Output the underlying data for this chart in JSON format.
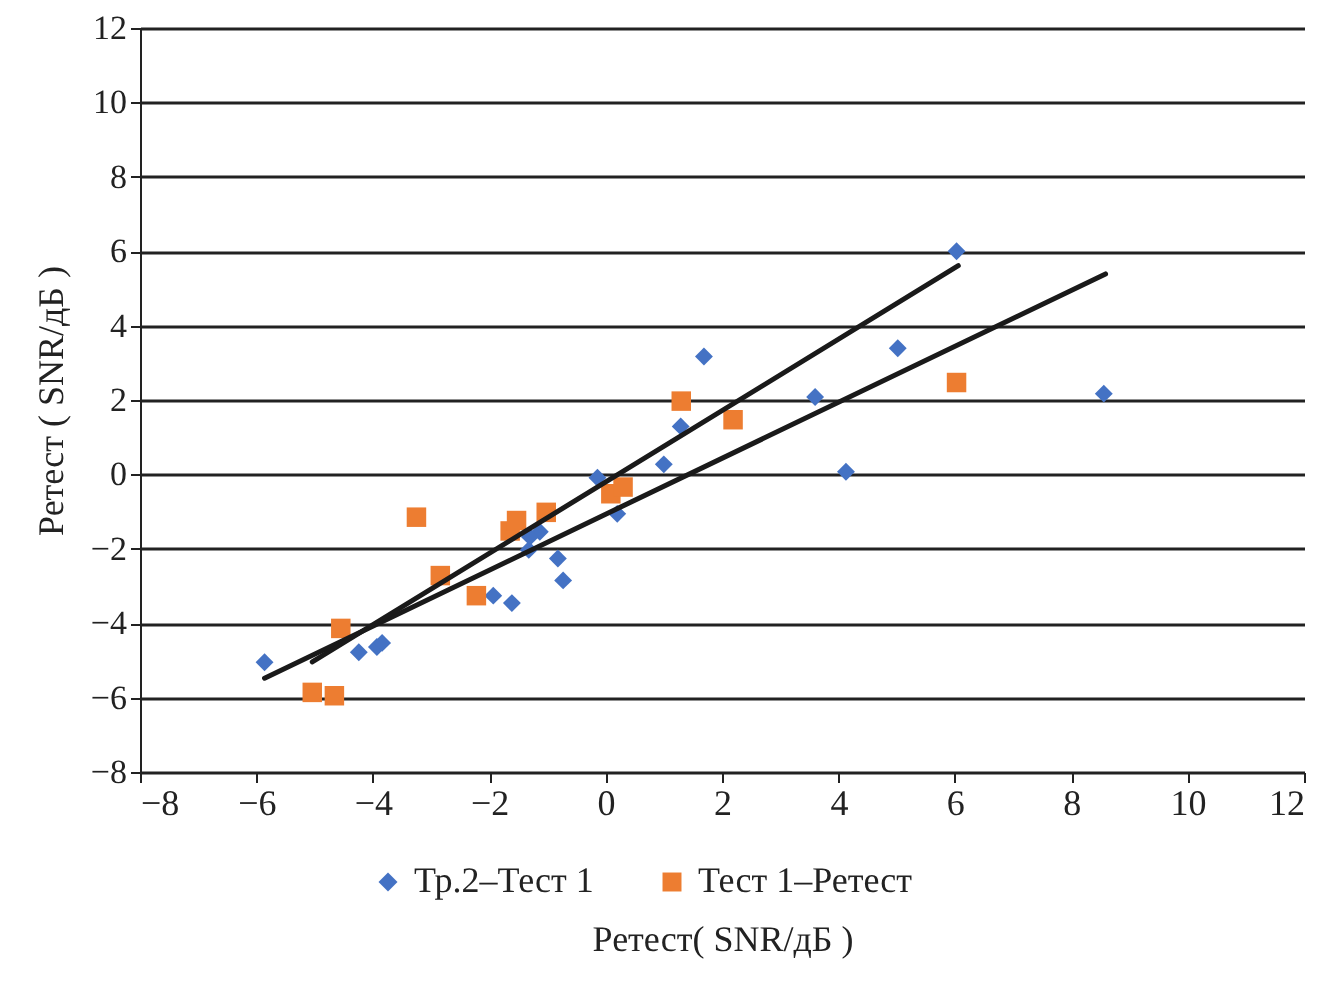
{
  "chart_data": {
    "type": "scatter",
    "xlabel": "Ретест( SNR/дБ )",
    "ylabel": "Ретест ( SNR/дБ )",
    "xlim": [
      -8,
      12
    ],
    "xticks": [
      -8,
      -6,
      -4,
      -2,
      0,
      2,
      4,
      6,
      8,
      10,
      12
    ],
    "ylim": [
      -8,
      12
    ],
    "yticks": [
      -8,
      -6,
      -4,
      -2,
      0,
      2,
      4,
      6,
      8,
      10,
      12
    ],
    "grid": "y",
    "legend": "bottom",
    "series": [
      {
        "name": "Тр.2–Тест 1",
        "color": "#4472c4",
        "marker": "diamond",
        "x": [
          -5.86,
          -4.24,
          -3.93,
          -3.84,
          -1.93,
          -1.61,
          -0.82,
          -0.73,
          -1.32,
          -1.13,
          -1.3,
          -0.14,
          0.2,
          1.0,
          1.29,
          1.69,
          5.02,
          3.6,
          4.13,
          6.03,
          8.56
        ],
        "values": [
          -5.05,
          -4.78,
          -4.64,
          -4.53,
          -3.26,
          -3.46,
          -2.26,
          -2.85,
          -2.03,
          -1.54,
          -1.68,
          -0.09,
          -1.06,
          0.27,
          1.29,
          3.17,
          3.39,
          2.08,
          0.07,
          6.0,
          2.17
        ]
      },
      {
        "name": "Тест 1–Ретест",
        "color": "#ed7d31",
        "marker": "square",
        "x": [
          -5.04,
          -4.66,
          -4.55,
          -3.25,
          -2.84,
          -2.22,
          -1.64,
          -1.53,
          -1.02,
          0.09,
          0.3,
          1.3,
          2.19,
          6.03
        ],
        "values": [
          -5.86,
          -5.95,
          -4.14,
          -1.15,
          -2.72,
          -3.26,
          -1.52,
          -1.24,
          -1.02,
          -0.52,
          -0.34,
          1.97,
          1.47,
          2.47
        ]
      },
      {
        "type": "line",
        "color": "#1a1a1a",
        "line_style": "solid",
        "marker": "none",
        "x": [
          -5.86,
          8.59
        ],
        "values": [
          -5.48,
          5.39
        ]
      },
      {
        "type": "line",
        "color": "#1a1a1a",
        "line_style": "solid",
        "marker": "none",
        "x": [
          -5.04,
          6.06
        ],
        "values": [
          -5.04,
          5.61
        ]
      }
    ]
  }
}
